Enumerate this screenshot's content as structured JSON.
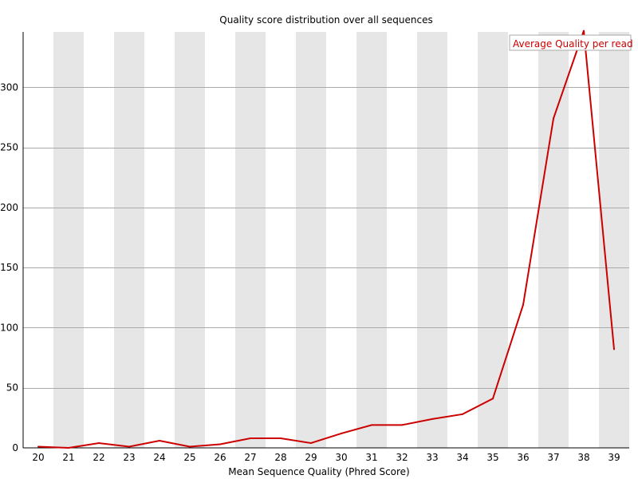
{
  "chart_data": {
    "type": "line",
    "title": "Quality score distribution over all sequences",
    "xlabel": "Mean Sequence Quality (Phred Score)",
    "ylabel": "",
    "x": [
      20,
      21,
      22,
      23,
      24,
      25,
      26,
      27,
      28,
      29,
      30,
      31,
      32,
      33,
      34,
      35,
      36,
      37,
      38,
      39
    ],
    "x_tick_labels": [
      "20",
      "21",
      "22",
      "23",
      "24",
      "25",
      "26",
      "27",
      "28",
      "29",
      "30",
      "31",
      "32",
      "33",
      "34",
      "35",
      "36",
      "37",
      "38",
      "39"
    ],
    "y_ticks": [
      0,
      50,
      100,
      150,
      200,
      250,
      300
    ],
    "ylim": [
      0,
      346
    ],
    "grid": true,
    "alternating_bands": true,
    "band_color": "#e6e6e6",
    "gridline_color": "#aaaaaa",
    "series": [
      {
        "name": "Average Quality per read",
        "color": "#cc0000",
        "values": [
          1,
          0,
          4,
          1,
          6,
          1,
          3,
          8,
          8,
          4,
          12,
          19,
          19,
          24,
          28,
          41,
          119,
          274,
          347,
          82
        ]
      }
    ],
    "legend_placement": "top-right"
  }
}
